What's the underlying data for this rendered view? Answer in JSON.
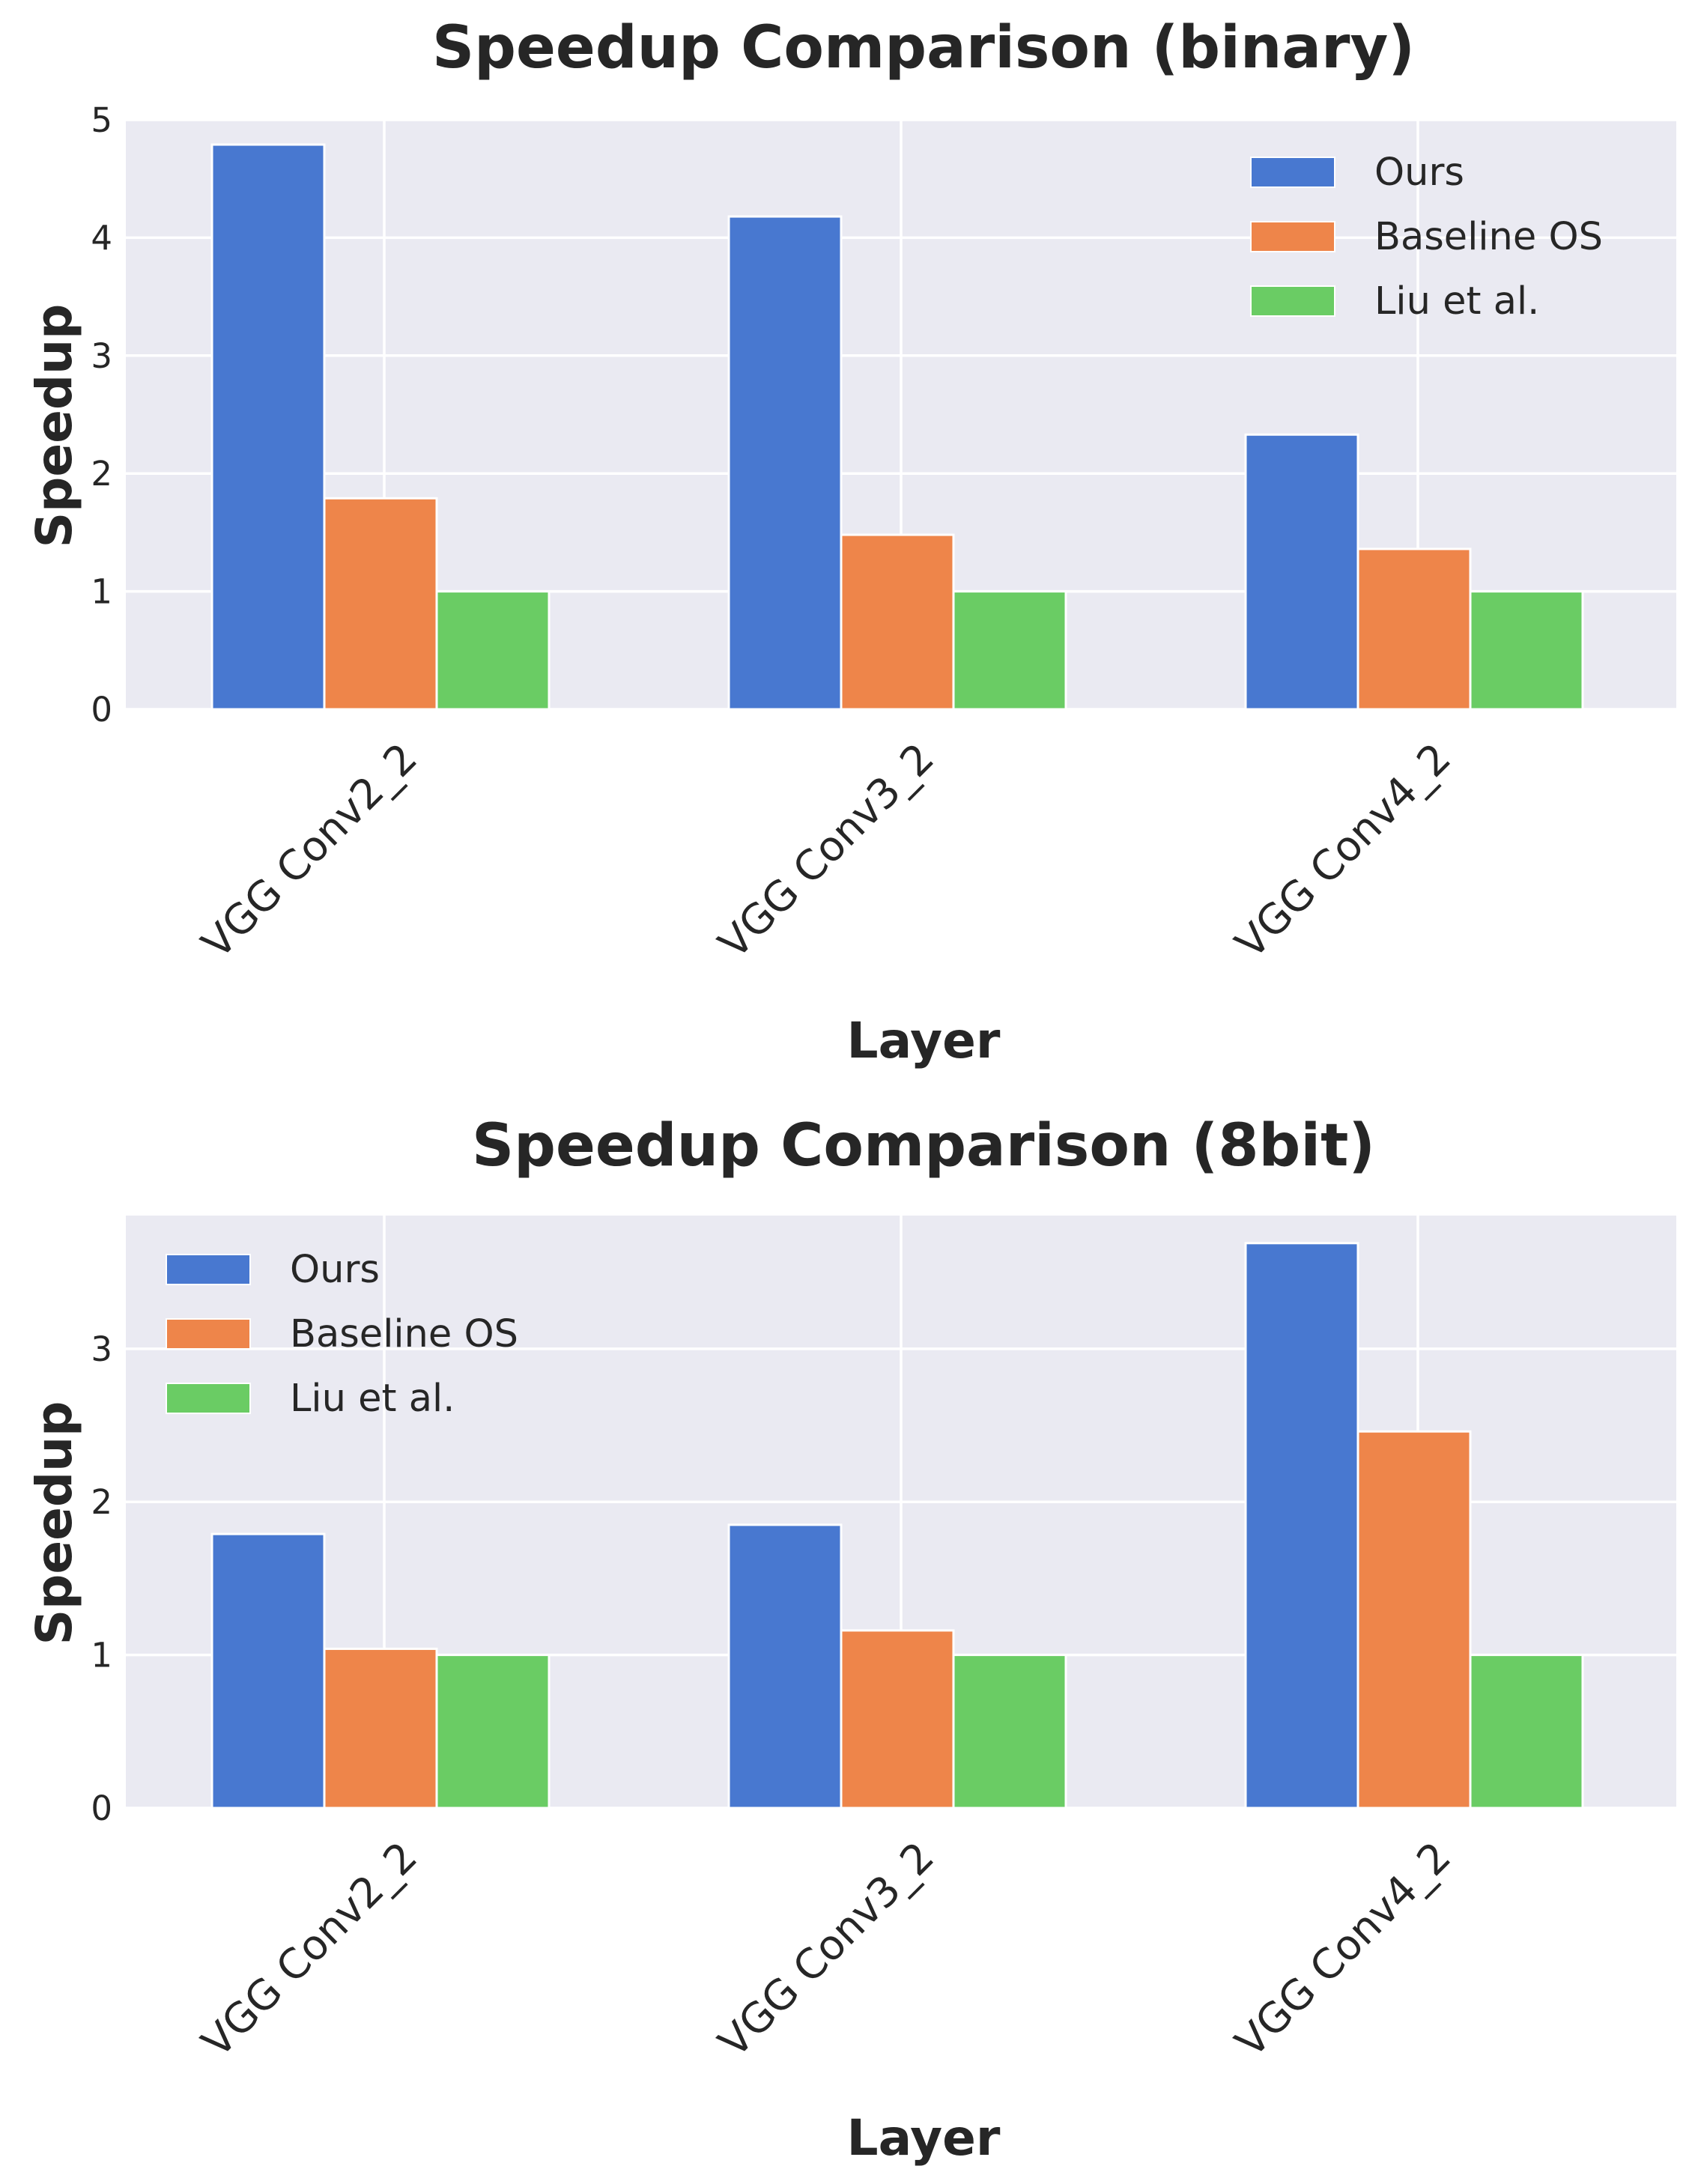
{
  "colors": {
    "background": "#eaeaf2",
    "grid": "#ffffff",
    "ours": "#4878d0",
    "baseline_os": "#ee854a",
    "liu": "#6acc64"
  },
  "chart_data": [
    {
      "type": "bar",
      "title": "Speedup Comparison (binary)",
      "xlabel": "Layer",
      "ylabel": "Speedup",
      "categories": [
        "VGG Conv2_2",
        "VGG Conv3_2",
        "VGG Conv4_2"
      ],
      "series": [
        {
          "name": "Ours",
          "values": [
            4.79,
            4.18,
            2.33
          ],
          "color": "#4878d0"
        },
        {
          "name": "Baseline OS",
          "values": [
            1.79,
            1.48,
            1.36
          ],
          "color": "#ee854a"
        },
        {
          "name": "Liu et al.",
          "values": [
            1.0,
            1.0,
            1.0
          ],
          "color": "#6acc64"
        }
      ],
      "ylim": [
        0,
        5
      ],
      "yticks": [
        0,
        1,
        2,
        3,
        4,
        5
      ],
      "grid": true,
      "legend_position": "top-right"
    },
    {
      "type": "bar",
      "title": "Speedup Comparison (8bit)",
      "xlabel": "Layer",
      "ylabel": "Speedup",
      "categories": [
        "VGG Conv2_2",
        "VGG Conv3_2",
        "VGG Conv4_2"
      ],
      "series": [
        {
          "name": "Ours",
          "values": [
            1.79,
            1.85,
            3.69
          ],
          "color": "#4878d0"
        },
        {
          "name": "Baseline OS",
          "values": [
            1.04,
            1.16,
            2.46
          ],
          "color": "#ee854a"
        },
        {
          "name": "Liu et al.",
          "values": [
            1.0,
            1.0,
            1.0
          ],
          "color": "#6acc64"
        }
      ],
      "ylim": [
        0,
        3.87
      ],
      "yticks": [
        0,
        1,
        2,
        3
      ],
      "grid": true,
      "legend_position": "top-left"
    }
  ]
}
